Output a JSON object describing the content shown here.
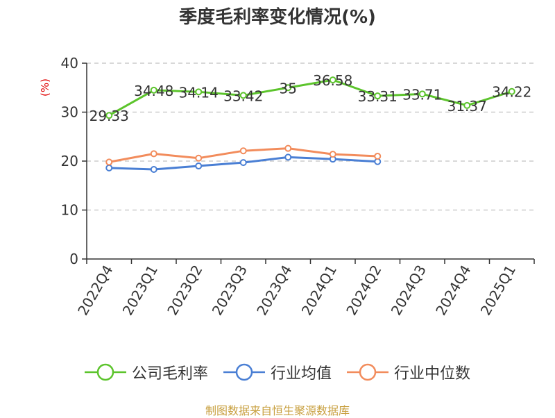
{
  "chart_data": {
    "type": "line",
    "title": "季度毛利率变化情况(%)",
    "ylabel": "(%)",
    "xlabel": "",
    "categories": [
      "2022Q4",
      "2023Q1",
      "2023Q2",
      "2023Q3",
      "2023Q4",
      "2024Q1",
      "2024Q2",
      "2024Q3",
      "2024Q4",
      "2025Q1"
    ],
    "ylim": [
      0,
      40
    ],
    "yticks": [
      0,
      10,
      20,
      30,
      40
    ],
    "grid": true,
    "legend_position": "bottom",
    "series": [
      {
        "name": "公司毛利率",
        "color": "#5cc42c",
        "show_labels": true,
        "labels": [
          "29.33",
          "34.48",
          "34.14",
          "33.42",
          "35",
          "36.58",
          "33.31",
          "33.71",
          "31.37",
          "34.22"
        ],
        "values": [
          29.33,
          34.48,
          34.14,
          33.42,
          35,
          36.58,
          33.31,
          33.71,
          31.37,
          34.22
        ]
      },
      {
        "name": "行业均值",
        "color": "#4a7fd4",
        "show_labels": false,
        "values": [
          18.6,
          18.3,
          19.0,
          19.7,
          20.8,
          20.4,
          19.9,
          null,
          null,
          null
        ]
      },
      {
        "name": "行业中位数",
        "color": "#f28c5c",
        "show_labels": false,
        "values": [
          19.8,
          21.5,
          20.6,
          22.1,
          22.6,
          21.4,
          21.0,
          null,
          null,
          null
        ]
      }
    ],
    "source": "制图数据来自恒生聚源数据库"
  }
}
